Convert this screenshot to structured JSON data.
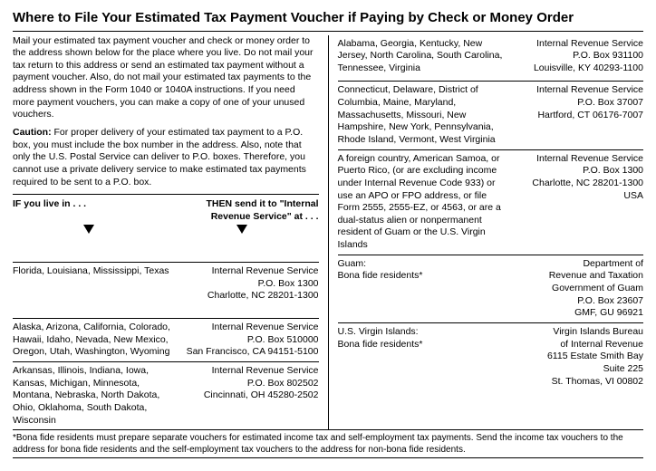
{
  "title": "Where to File Your Estimated Tax Payment Voucher if Paying by Check or Money Order",
  "intro": "Mail your estimated tax payment voucher and check or money order to the address shown below for the place where you live. Do not mail your tax return to this address or send an estimated tax payment without a payment voucher. Also, do not mail your estimated tax payments to the address shown in the Form 1040 or 1040A instructions. If you need more payment vouchers, you can make a copy of one of your unused vouchers.",
  "caution_label": "Caution:",
  "caution": " For proper delivery of your estimated tax payment to a P.O. box, you must include the box number in the address. Also, note that only the U.S. Postal Service can deliver to P.O. boxes. Therefore, you cannot use a private delivery service to make estimated tax payments required to be sent to a P.O. box.",
  "if_label": "IF you live in . . .",
  "then_label": "THEN send it to \"Internal Revenue Service\" at . . .",
  "left_rows": [
    {
      "loc": "Florida, Louisiana, Mississippi, Texas",
      "addr": "Internal Revenue Service\nP.O. Box 1300\nCharlotte, NC 28201-1300"
    },
    {
      "loc": "Alaska, Arizona, California, Colorado, Hawaii, Idaho, Nevada, New Mexico, Oregon, Utah, Washington, Wyoming",
      "addr": "Internal Revenue Service\nP.O. Box 510000\nSan Francisco, CA 94151-5100"
    },
    {
      "loc": "Arkansas, Illinois, Indiana, Iowa, Kansas, Michigan, Minnesota, Montana, Nebraska, North Dakota, Ohio, Oklahoma, South Dakota, Wisconsin",
      "addr": "Internal Revenue Service\nP.O. Box 802502\nCincinnati, OH 45280-2502"
    }
  ],
  "right_rows": [
    {
      "loc": "Alabama, Georgia, Kentucky, New Jersey, North Carolina, South Carolina, Tennessee, Virginia",
      "addr": "Internal Revenue Service\nP.O. Box 931100\nLouisville, KY 40293-1100"
    },
    {
      "loc": "Connecticut, Delaware, District of Columbia, Maine, Maryland, Massachusetts, Missouri, New Hampshire, New York, Pennsylvania, Rhode Island, Vermont, West Virginia",
      "addr": "Internal Revenue Service\nP.O. Box 37007\nHartford, CT 06176-7007"
    },
    {
      "loc": "A foreign country, American Samoa, or Puerto Rico, (or are excluding income under Internal Revenue Code 933) or use an APO or FPO address, or file Form 2555, 2555-EZ, or 4563, or are a dual-status alien or nonpermanent resident of Guam or the U.S. Virgin Islands",
      "addr": "Internal Revenue Service\nP.O. Box 1300\nCharlotte, NC 28201-1300\nUSA"
    },
    {
      "loc": "Guam:\nBona fide residents*",
      "addr": "Department of\nRevenue and Taxation\nGovernment of Guam\nP.O. Box 23607\nGMF, GU 96921"
    },
    {
      "loc": "U.S. Virgin Islands:\nBona fide residents*",
      "addr": "Virgin Islands Bureau\nof Internal Revenue\n6115 Estate Smith Bay\nSuite 225\nSt. Thomas, VI 00802"
    }
  ],
  "footnote": "*Bona fide residents must prepare separate vouchers for estimated income tax and self-employment tax payments. Send the income tax vouchers to the address for bona fide residents and the self-employment tax vouchers to the address for non-bona fide residents."
}
